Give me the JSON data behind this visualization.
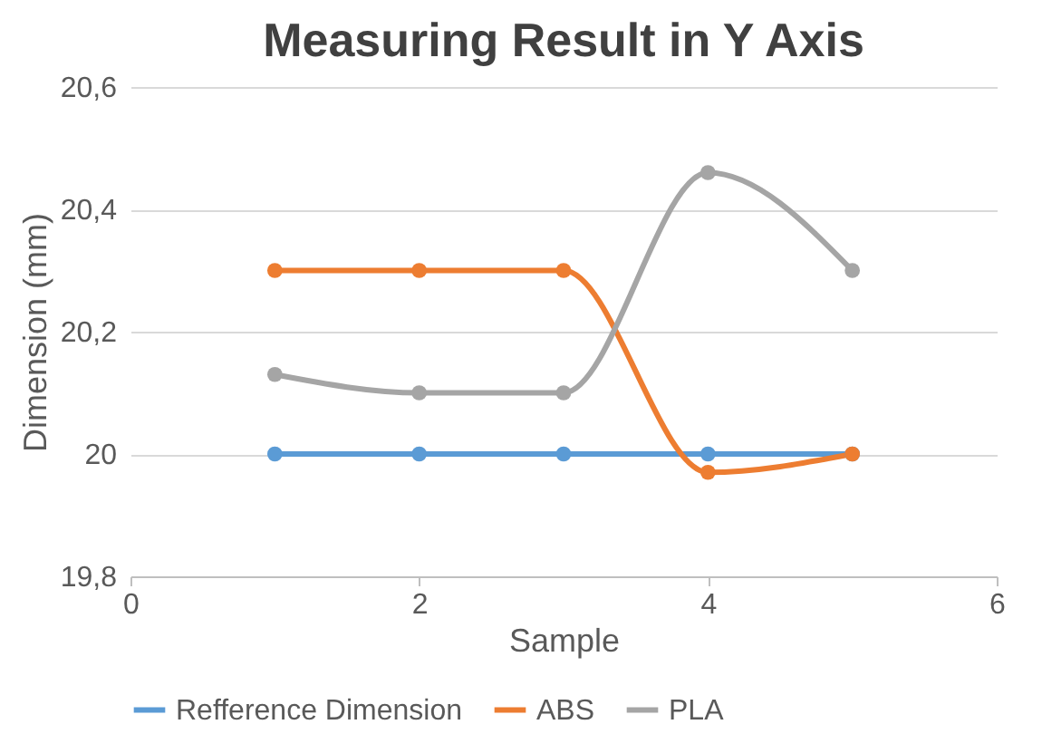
{
  "chart_data": {
    "type": "line",
    "title": "Measuring Result in Y Axis",
    "xlabel": "Sample",
    "ylabel": "Dimension (mm)",
    "x": [
      1,
      2,
      3,
      4,
      5
    ],
    "series": [
      {
        "name": "Refference Dimension",
        "color": "#5b9bd5",
        "values": [
          20,
          20,
          20,
          20,
          20
        ]
      },
      {
        "name": "ABS",
        "color": "#ed7d31",
        "values": [
          20.3,
          20.3,
          20.3,
          19.97,
          20
        ]
      },
      {
        "name": "PLA",
        "color": "#a5a5a5",
        "values": [
          20.13,
          20.1,
          20.1,
          20.46,
          20.3
        ]
      }
    ],
    "xlim": [
      0,
      6
    ],
    "xticks": [
      0,
      2,
      4,
      6
    ],
    "ylim": [
      19.8,
      20.6
    ],
    "yticks": [
      {
        "value": 19.8,
        "label": "19,8"
      },
      {
        "value": 20,
        "label": "20"
      },
      {
        "value": 20.2,
        "label": "20,2"
      },
      {
        "value": 20.4,
        "label": "20,4"
      },
      {
        "value": 20.6,
        "label": "20,6"
      }
    ],
    "grid": "y",
    "legend": "bottom",
    "marker": "circle",
    "line_style": "solid"
  }
}
